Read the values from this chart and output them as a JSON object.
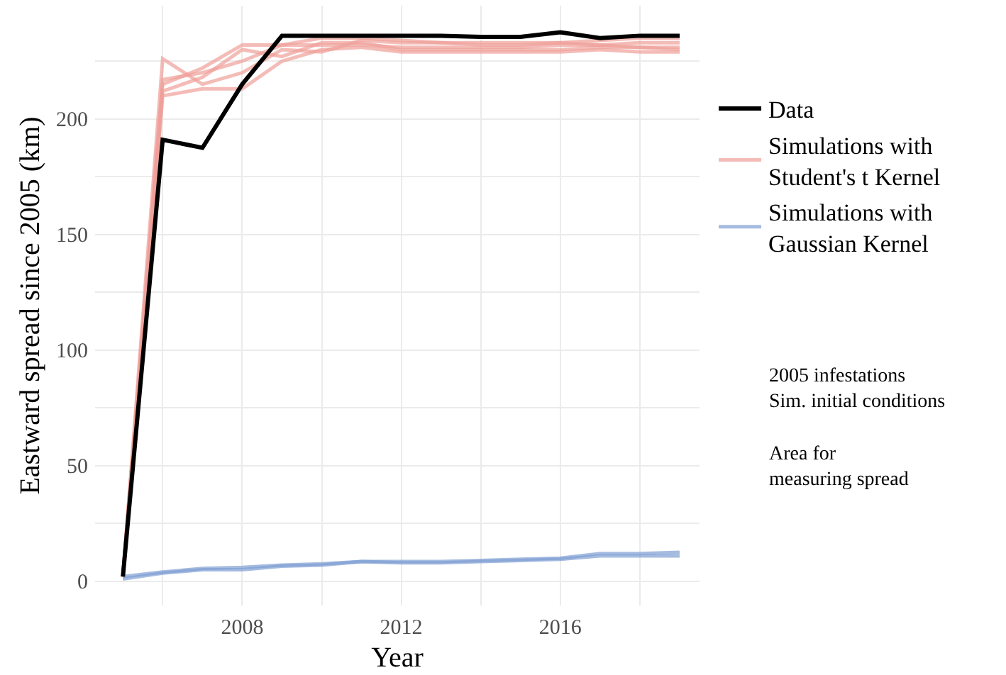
{
  "chart_data": {
    "type": "line",
    "xlabel": "Year",
    "ylabel": "Eastward spread since 2005 (km)",
    "x": [
      2005,
      2006,
      2007,
      2008,
      2009,
      2010,
      2011,
      2012,
      2013,
      2014,
      2015,
      2016,
      2017,
      2018,
      2019
    ],
    "series": [
      {
        "name": "Data",
        "color": "#000000",
        "values": [
          2,
          191,
          187.5,
          215,
          236,
          236,
          236,
          236,
          236,
          235.5,
          235.5,
          237.5,
          235,
          236,
          236
        ]
      },
      {
        "name": "Simulations with\nStudent's t Kernel",
        "color": "#f0a09a",
        "values": [
          2,
          226,
          215,
          220,
          230,
          229,
          234,
          233,
          233,
          232,
          232,
          233,
          234,
          235,
          235
        ]
      },
      {
        "color": "#f0a09a",
        "values": [
          2,
          217,
          220,
          225,
          232,
          232,
          232,
          231,
          231,
          231,
          231,
          232,
          232,
          233,
          233
        ]
      },
      {
        "color": "#f0a09a",
        "values": [
          2,
          215,
          222,
          232,
          232,
          235,
          235,
          234,
          233,
          233,
          233,
          233,
          232,
          231,
          230
        ]
      },
      {
        "color": "#f0a09a",
        "values": [
          2,
          212,
          218,
          230,
          227,
          233,
          233,
          230,
          230,
          230,
          230,
          230,
          231,
          231,
          231
        ]
      },
      {
        "color": "#f0a09a",
        "values": [
          2,
          210,
          213,
          213,
          225,
          230,
          231,
          229,
          229,
          229,
          229,
          229,
          230,
          229,
          229
        ]
      },
      {
        "name": "Simulations with\nGaussian Kernel",
        "color": "#7f9fd4",
        "values": [
          1,
          3.5,
          5,
          5,
          6.5,
          7,
          8.5,
          8,
          8,
          8.5,
          9,
          9.5,
          11,
          11,
          11
        ]
      },
      {
        "color": "#7f9fd4",
        "values": [
          2,
          4,
          5.5,
          6,
          7,
          7.5,
          8.5,
          8.5,
          8.5,
          9,
          9.5,
          10,
          12,
          12,
          12.5
        ]
      }
    ],
    "xlim": [
      2004.3,
      2019.5
    ],
    "ylim": [
      -10.5,
      249
    ],
    "xticks": [
      {
        "value": 2006,
        "label": null
      },
      2008,
      {
        "value": 2010,
        "label": null
      },
      2012,
      {
        "value": 2014,
        "label": null
      },
      2016,
      {
        "value": 2018,
        "label": null
      }
    ],
    "yticks": [
      0,
      {
        "value": 25,
        "label": null
      },
      50,
      {
        "value": 75,
        "label": null
      },
      100,
      {
        "value": 125,
        "label": null
      },
      150,
      {
        "value": 175,
        "label": null
      },
      200,
      {
        "value": 225,
        "label": null
      }
    ],
    "grid": true,
    "legend": "right",
    "annotations": [
      "2005 infestations\nSim. initial conditions",
      "Area for\nmeasuring spread"
    ]
  }
}
